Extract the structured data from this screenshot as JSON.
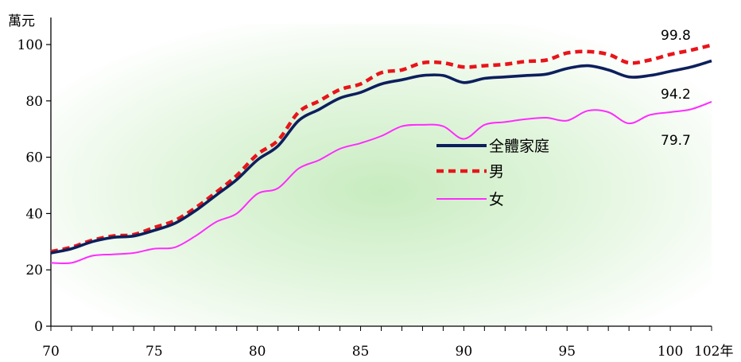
{
  "chart_data": {
    "type": "line",
    "ylabel": "萬元",
    "x_start": 70,
    "x_end": 102,
    "x_ticks": [
      {
        "value": 70,
        "label": "70"
      },
      {
        "value": 75,
        "label": "75"
      },
      {
        "value": 80,
        "label": "80"
      },
      {
        "value": 85,
        "label": "85"
      },
      {
        "value": 90,
        "label": "90"
      },
      {
        "value": 95,
        "label": "95"
      },
      {
        "value": 100,
        "label": "100"
      },
      {
        "value": 102,
        "label": "102年"
      }
    ],
    "ylim": [
      0,
      100
    ],
    "y_ticks": [
      0,
      20,
      40,
      60,
      80,
      100
    ],
    "grid": false,
    "legend_position": "center-right",
    "series": [
      {
        "name": "全體家庭",
        "color": "#0d1f5c",
        "style": "solid",
        "x": [
          70,
          71,
          72,
          73,
          74,
          75,
          76,
          77,
          78,
          79,
          80,
          81,
          82,
          83,
          84,
          85,
          86,
          87,
          88,
          89,
          90,
          91,
          92,
          93,
          94,
          95,
          96,
          97,
          98,
          99,
          100,
          101,
          102
        ],
        "values": [
          26,
          27.5,
          30,
          31.5,
          32,
          34,
          36.5,
          41,
          46.5,
          52,
          59,
          64,
          73,
          77,
          81,
          83,
          86,
          87.5,
          89,
          89,
          86.5,
          88,
          88.5,
          89,
          89.5,
          91.5,
          92.5,
          91,
          88.5,
          89,
          90.5,
          92,
          94.2
        ]
      },
      {
        "name": "男",
        "color": "#e8141a",
        "style": "dashed",
        "x": [
          70,
          71,
          72,
          73,
          74,
          75,
          76,
          77,
          78,
          79,
          80,
          81,
          82,
          83,
          84,
          85,
          86,
          87,
          88,
          89,
          90,
          91,
          92,
          93,
          94,
          95,
          96,
          97,
          98,
          99,
          100,
          101,
          102
        ],
        "values": [
          26.5,
          28,
          30.5,
          32,
          32.5,
          35,
          37.5,
          42,
          47.5,
          53.5,
          61,
          66,
          76,
          80,
          84,
          86,
          90,
          91,
          93.5,
          93.5,
          92,
          92.5,
          93,
          94,
          94.5,
          97,
          97.5,
          96.5,
          93.5,
          94.5,
          96.5,
          98,
          99.8
        ]
      },
      {
        "name": "女",
        "color": "#ff2bff",
        "style": "solid",
        "x": [
          70,
          71,
          72,
          73,
          74,
          75,
          76,
          77,
          78,
          79,
          80,
          81,
          82,
          83,
          84,
          85,
          86,
          87,
          88,
          89,
          90,
          91,
          92,
          93,
          94,
          95,
          96,
          97,
          98,
          99,
          100,
          101,
          102
        ],
        "values": [
          22.5,
          22.5,
          25,
          25.5,
          26,
          27.5,
          28,
          32,
          37,
          40,
          47,
          49,
          56,
          59,
          63,
          65,
          67.5,
          71,
          71.5,
          71,
          66.5,
          71.5,
          72.5,
          73.5,
          74,
          73,
          76.5,
          76,
          72,
          75,
          76,
          77,
          79.7
        ]
      }
    ],
    "annotations": [
      "99.8",
      "94.2",
      "79.7"
    ]
  }
}
